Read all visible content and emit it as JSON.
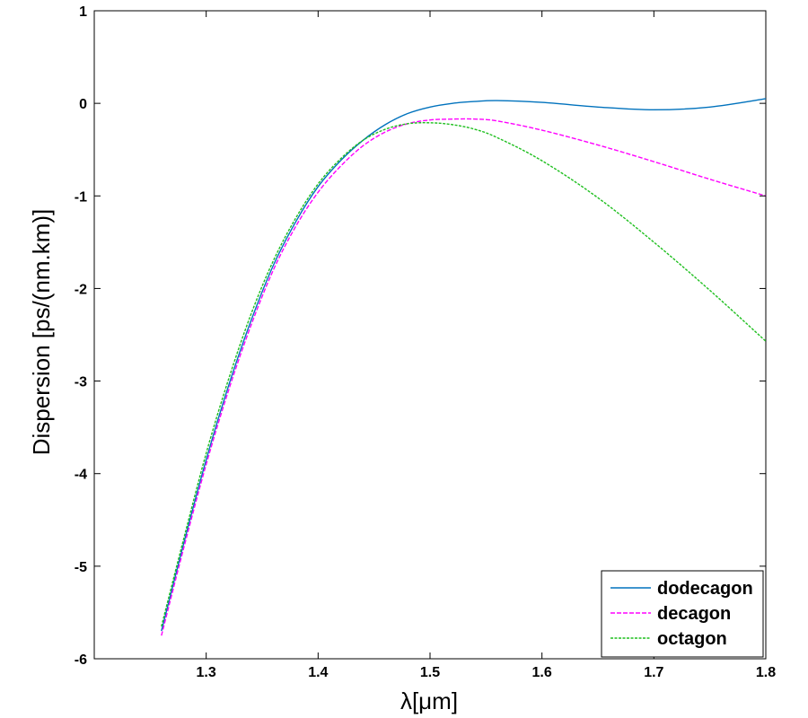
{
  "chart_data": {
    "type": "line",
    "title": "",
    "xlabel": "λ[μm]",
    "ylabel": "Dispersion [ps/(nm.km)]",
    "xlim": [
      1.2,
      1.8
    ],
    "ylim": [
      -6,
      1
    ],
    "xticks": [
      1.3,
      1.4,
      1.5,
      1.6,
      1.7,
      1.8
    ],
    "yticks": [
      1,
      0,
      -1,
      -2,
      -3,
      -4,
      -5,
      -6
    ],
    "legend_position": "bottom-right",
    "grid": false,
    "series": [
      {
        "name": "dodecagon",
        "color": "#0072BD",
        "dash": "solid",
        "x": [
          1.26,
          1.28,
          1.3,
          1.32,
          1.34,
          1.36,
          1.38,
          1.4,
          1.42,
          1.44,
          1.46,
          1.48,
          1.5,
          1.52,
          1.54,
          1.56,
          1.6,
          1.65,
          1.7,
          1.75,
          1.8
        ],
        "y": [
          -5.7,
          -4.75,
          -3.85,
          -3.05,
          -2.35,
          -1.75,
          -1.28,
          -0.9,
          -0.62,
          -0.4,
          -0.23,
          -0.11,
          -0.04,
          0.0,
          0.02,
          0.03,
          0.01,
          -0.04,
          -0.07,
          -0.04,
          0.05
        ]
      },
      {
        "name": "decagon",
        "color": "#FF00FF",
        "dash": "dashed",
        "x": [
          1.26,
          1.28,
          1.3,
          1.32,
          1.34,
          1.36,
          1.38,
          1.4,
          1.42,
          1.44,
          1.46,
          1.48,
          1.5,
          1.52,
          1.54,
          1.56,
          1.6,
          1.65,
          1.7,
          1.75,
          1.8
        ],
        "y": [
          -5.75,
          -4.8,
          -3.9,
          -3.1,
          -2.4,
          -1.8,
          -1.33,
          -0.96,
          -0.68,
          -0.46,
          -0.31,
          -0.22,
          -0.18,
          -0.17,
          -0.17,
          -0.19,
          -0.29,
          -0.45,
          -0.63,
          -0.82,
          -1.0
        ]
      },
      {
        "name": "octagon",
        "color": "#1FBF1F",
        "dash": "dotted",
        "x": [
          1.26,
          1.28,
          1.3,
          1.32,
          1.34,
          1.36,
          1.38,
          1.4,
          1.42,
          1.44,
          1.46,
          1.48,
          1.5,
          1.52,
          1.54,
          1.56,
          1.6,
          1.65,
          1.7,
          1.75,
          1.8
        ],
        "y": [
          -5.65,
          -4.7,
          -3.78,
          -2.98,
          -2.28,
          -1.7,
          -1.24,
          -0.87,
          -0.6,
          -0.4,
          -0.28,
          -0.22,
          -0.21,
          -0.23,
          -0.28,
          -0.37,
          -0.62,
          -1.02,
          -1.5,
          -2.02,
          -2.57
        ]
      }
    ]
  }
}
